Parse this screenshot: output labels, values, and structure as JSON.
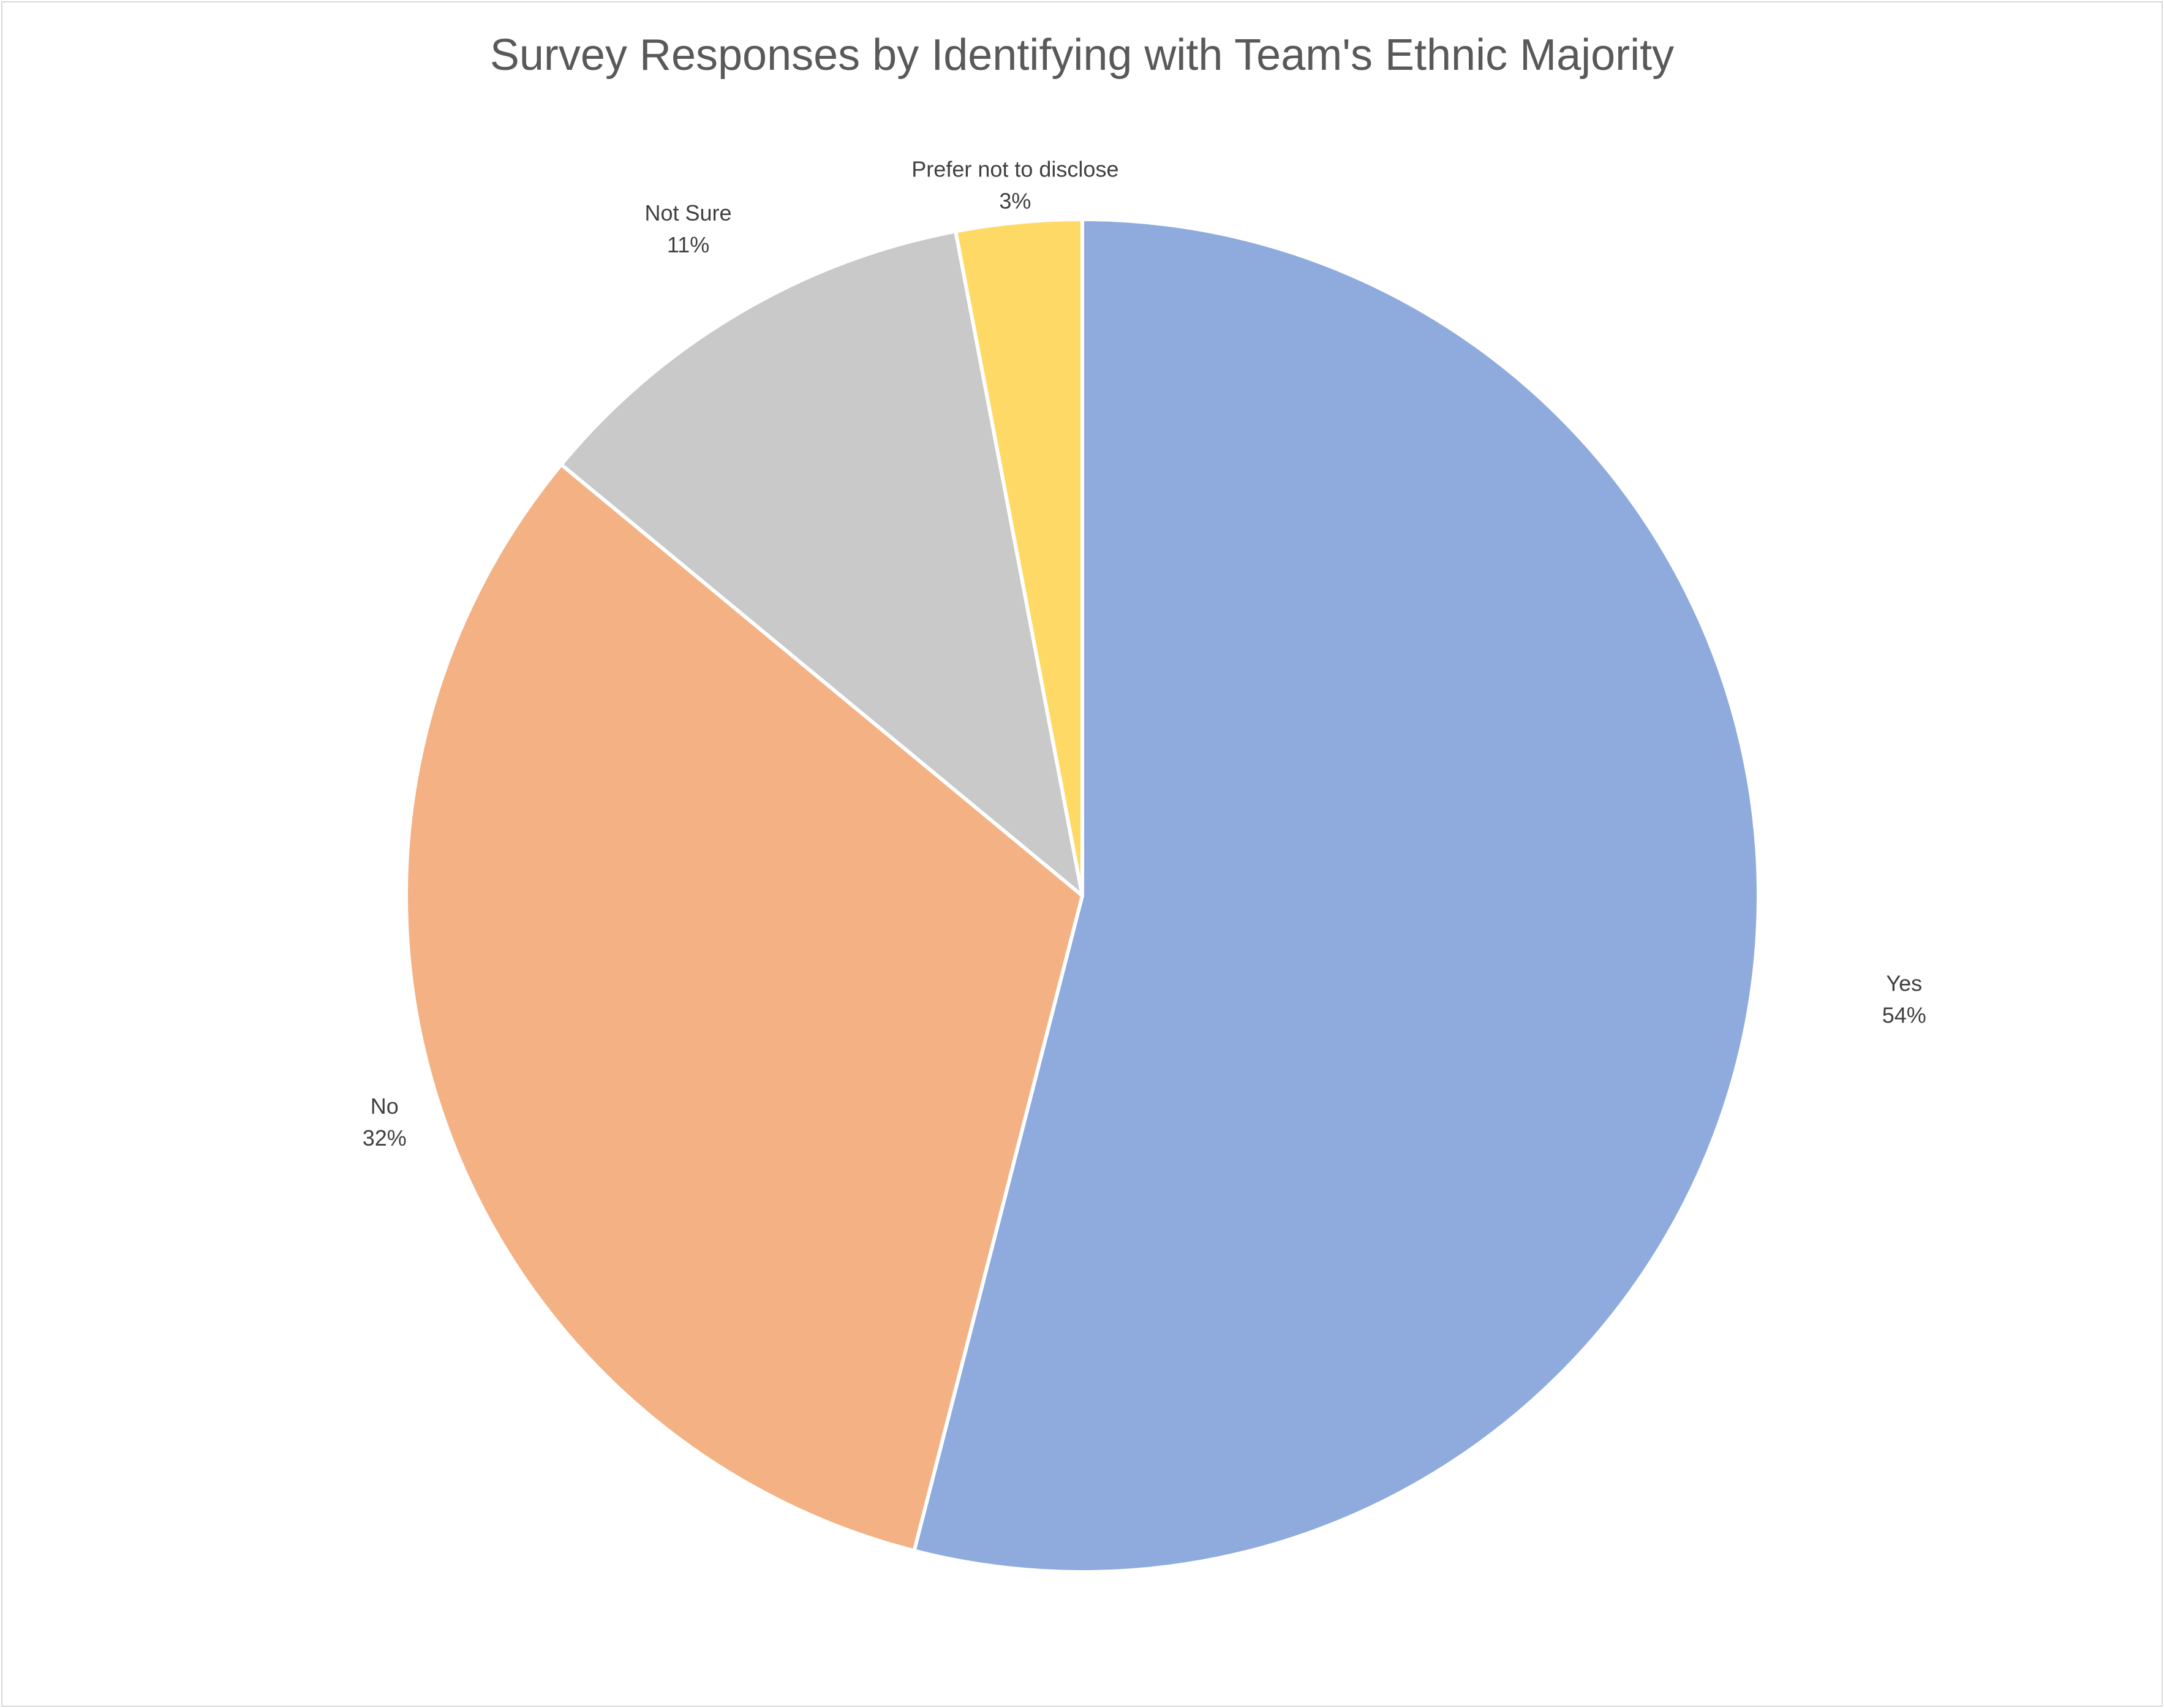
{
  "chart_data": {
    "type": "pie",
    "title": "Survey Responses by Identifying with Team's Ethnic Majority",
    "slices": [
      {
        "label": "Yes",
        "value": 54,
        "percent_label": "54%",
        "color": "#8faadc"
      },
      {
        "label": "No",
        "value": 32,
        "percent_label": "32%",
        "color": "#f4b183"
      },
      {
        "label": "Not Sure",
        "value": 11,
        "percent_label": "11%",
        "color": "#c9c9c9"
      },
      {
        "label": "Prefer not to disclose",
        "value": 3,
        "percent_label": "3%",
        "color": "#ffd966"
      }
    ],
    "start_angle_deg": 0,
    "direction": "clockwise",
    "legend": "none"
  }
}
